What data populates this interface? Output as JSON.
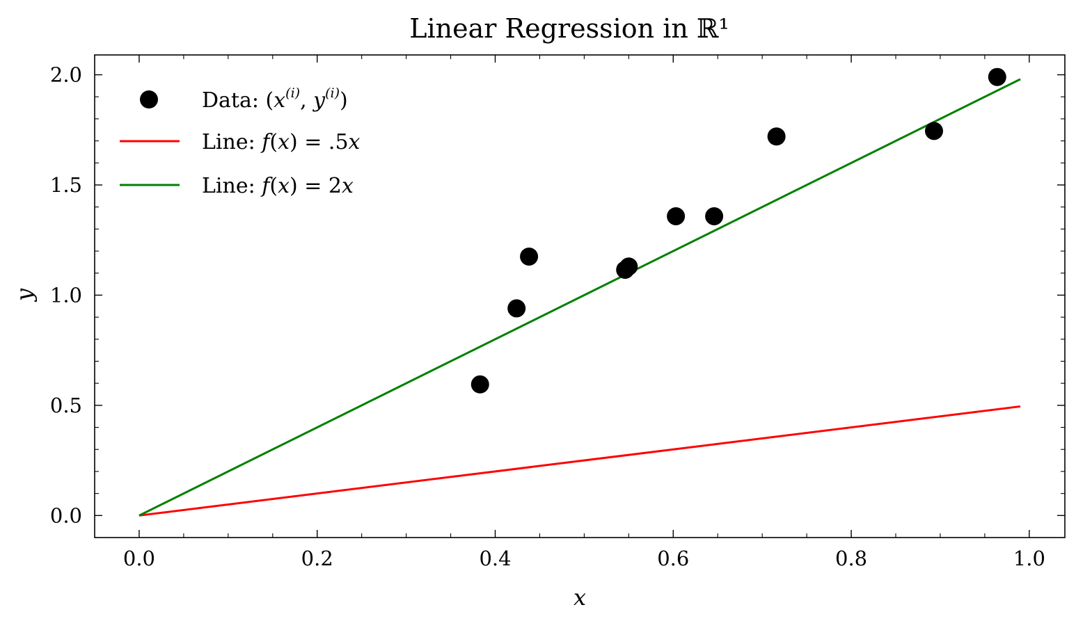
{
  "chart_data": {
    "type": "scatter",
    "title": "Linear Regression in ℝ¹",
    "xlabel": "x",
    "ylabel": "y",
    "xlim": [
      -0.05,
      1.04
    ],
    "ylim": [
      -0.1,
      2.09
    ],
    "xticks": [
      "0.0",
      "0.2",
      "0.4",
      "0.6",
      "0.8",
      "1.0"
    ],
    "yticks": [
      "0.0",
      "0.5",
      "1.0",
      "1.5",
      "2.0"
    ],
    "grid": false,
    "legend_position": "top-left",
    "series": [
      {
        "name": "Data: (x(i), y(i))",
        "kind": "scatter",
        "color": "#000000",
        "x": [
          0.383,
          0.424,
          0.438,
          0.546,
          0.55,
          0.603,
          0.646,
          0.716,
          0.893,
          0.964
        ],
        "y": [
          0.595,
          0.94,
          1.175,
          1.115,
          1.13,
          1.358,
          1.358,
          1.72,
          1.745,
          1.99
        ]
      },
      {
        "name": "Line: f(x) = .5x",
        "kind": "line",
        "color": "#ff0000",
        "x": [
          0.0,
          0.99
        ],
        "y": [
          0.0,
          0.495
        ]
      },
      {
        "name": "Line: f(x) = 2x",
        "kind": "line",
        "color": "#008000",
        "x": [
          0.0,
          0.99
        ],
        "y": [
          0.0,
          1.98
        ]
      }
    ]
  }
}
